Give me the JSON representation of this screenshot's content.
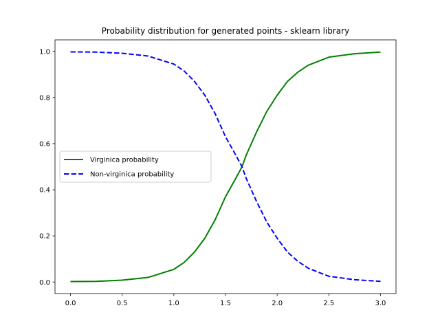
{
  "chart_data": {
    "type": "line",
    "title": "Probability distribution for generated points - sklearn library",
    "xlabel": "",
    "ylabel": "",
    "xlim": [
      -0.15,
      3.15
    ],
    "ylim": [
      -0.05,
      1.05
    ],
    "xticks": [
      0.0,
      0.5,
      1.0,
      1.5,
      2.0,
      2.5,
      3.0
    ],
    "xtick_labels": [
      "0.0",
      "0.5",
      "1.0",
      "1.5",
      "2.0",
      "2.5",
      "3.0"
    ],
    "yticks": [
      0.0,
      0.2,
      0.4,
      0.6,
      0.8,
      1.0
    ],
    "ytick_labels": [
      "0.0",
      "0.2",
      "0.4",
      "0.6",
      "0.8",
      "1.0"
    ],
    "grid": false,
    "legend_position": "center-left",
    "x": [
      0.0,
      0.25,
      0.5,
      0.75,
      1.0,
      1.1,
      1.2,
      1.3,
      1.4,
      1.5,
      1.6,
      1.66,
      1.7,
      1.8,
      1.9,
      2.0,
      2.1,
      2.2,
      2.3,
      2.5,
      2.75,
      3.0
    ],
    "series": [
      {
        "name": "Virginica probability",
        "color": "#008000",
        "style": "solid",
        "values": [
          0.002,
          0.003,
          0.008,
          0.02,
          0.055,
          0.085,
          0.13,
          0.19,
          0.27,
          0.37,
          0.45,
          0.5,
          0.55,
          0.65,
          0.74,
          0.81,
          0.87,
          0.91,
          0.94,
          0.975,
          0.99,
          0.997
        ]
      },
      {
        "name": "Non-virginica probability",
        "color": "#0000ff",
        "style": "dashed",
        "values": [
          0.998,
          0.997,
          0.992,
          0.98,
          0.945,
          0.915,
          0.87,
          0.81,
          0.73,
          0.63,
          0.55,
          0.5,
          0.45,
          0.35,
          0.26,
          0.19,
          0.13,
          0.09,
          0.06,
          0.025,
          0.01,
          0.003
        ]
      }
    ]
  }
}
